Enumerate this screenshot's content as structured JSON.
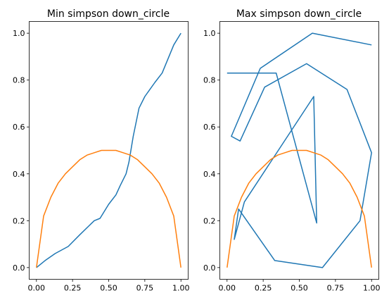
{
  "chart_data": [
    {
      "type": "line",
      "title": "Min simpson down_circle",
      "xlabel": "",
      "ylabel": "",
      "xlim": [
        -0.05,
        1.05
      ],
      "ylim": [
        -0.05,
        1.05
      ],
      "xticks": [
        "0.00",
        "0.25",
        "0.50",
        "0.75",
        "1.00"
      ],
      "yticks": [
        "0.0",
        "0.2",
        "0.4",
        "0.6",
        "0.8",
        "1.0"
      ],
      "grid": false,
      "series": [
        {
          "color": "#1f77b4",
          "x": [
            0.0,
            0.06,
            0.13,
            0.22,
            0.3,
            0.4,
            0.44,
            0.5,
            0.55,
            0.58,
            0.62,
            0.64,
            0.67,
            0.71,
            0.75,
            0.82,
            0.87,
            0.95,
            1.0
          ],
          "y": [
            0.0,
            0.03,
            0.06,
            0.09,
            0.14,
            0.2,
            0.21,
            0.27,
            0.31,
            0.35,
            0.4,
            0.45,
            0.56,
            0.68,
            0.73,
            0.79,
            0.83,
            0.95,
            1.0
          ]
        },
        {
          "color": "#ff7f0e",
          "x": [
            0.0,
            0.05,
            0.1,
            0.15,
            0.2,
            0.25,
            0.3,
            0.35,
            0.4,
            0.45,
            0.5,
            0.55,
            0.6,
            0.65,
            0.7,
            0.75,
            0.8,
            0.85,
            0.9,
            0.95,
            1.0
          ],
          "y": [
            0.0,
            0.22,
            0.3,
            0.36,
            0.4,
            0.43,
            0.46,
            0.48,
            0.49,
            0.5,
            0.5,
            0.5,
            0.49,
            0.48,
            0.46,
            0.43,
            0.4,
            0.36,
            0.3,
            0.22,
            0.0
          ]
        }
      ]
    },
    {
      "type": "line",
      "title": "Max simpson down_circle",
      "xlabel": "",
      "ylabel": "",
      "xlim": [
        -0.05,
        1.05
      ],
      "ylim": [
        -0.05,
        1.05
      ],
      "xticks": [
        "0.00",
        "0.25",
        "0.50",
        "0.75",
        "1.00"
      ],
      "yticks": [
        "0.0",
        "0.2",
        "0.4",
        "0.6",
        "0.8",
        "1.0"
      ],
      "grid": false,
      "series": [
        {
          "color": "#1f77b4",
          "x": [
            0.0,
            0.34,
            0.62,
            0.6,
            0.12,
            0.05,
            0.08,
            0.33,
            0.66,
            0.92,
            1.0,
            0.83,
            0.55,
            0.26,
            0.09,
            0.03,
            0.23,
            0.59,
            1.0
          ],
          "y": [
            0.83,
            0.83,
            0.19,
            0.73,
            0.28,
            0.12,
            0.25,
            0.03,
            0.0,
            0.2,
            0.49,
            0.76,
            0.87,
            0.77,
            0.54,
            0.56,
            0.85,
            1.0,
            0.95
          ]
        },
        {
          "color": "#ff7f0e",
          "x": [
            0.0,
            0.05,
            0.1,
            0.15,
            0.2,
            0.25,
            0.3,
            0.35,
            0.4,
            0.45,
            0.5,
            0.55,
            0.6,
            0.65,
            0.7,
            0.75,
            0.8,
            0.85,
            0.9,
            0.95,
            1.0
          ],
          "y": [
            0.0,
            0.22,
            0.3,
            0.36,
            0.4,
            0.43,
            0.46,
            0.48,
            0.49,
            0.5,
            0.5,
            0.5,
            0.49,
            0.48,
            0.46,
            0.43,
            0.4,
            0.36,
            0.3,
            0.22,
            0.0
          ]
        }
      ]
    }
  ]
}
